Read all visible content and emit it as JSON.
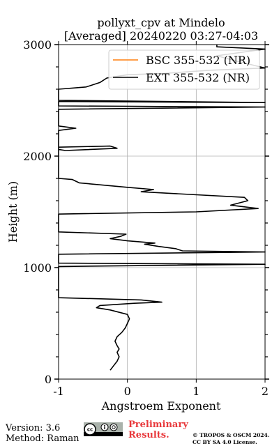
{
  "chart_data": {
    "type": "line",
    "title": [
      "pollyxt_cpv at Mindelo",
      "[Averaged] 20240220 03:27-04:03"
    ],
    "xlabel": "Angstroem Exponent",
    "ylabel": "Height (m)",
    "xlim": [
      -1,
      2
    ],
    "ylim": [
      0,
      3000
    ],
    "xticks": [
      "-1",
      "0",
      "1",
      "2"
    ],
    "yticks": [
      "0",
      "1000",
      "2000",
      "3000"
    ],
    "grid": true,
    "legend_position": "top-right",
    "series": [
      {
        "name": "BSC 355-532 (NR)",
        "color": "#ff7f0e",
        "points": []
      },
      {
        "name": "EXT 355-532 (NR)",
        "color": "#000000",
        "points": [
          [
            -0.25,
            80
          ],
          [
            -0.2,
            120
          ],
          [
            -0.15,
            160
          ],
          [
            -0.12,
            200
          ],
          [
            -0.15,
            240
          ],
          [
            -0.12,
            270
          ],
          [
            -0.15,
            300
          ],
          [
            -0.18,
            340
          ],
          [
            -0.15,
            380
          ],
          [
            -0.08,
            420
          ],
          [
            -0.03,
            460
          ],
          [
            0.0,
            500
          ],
          [
            0.03,
            540
          ],
          [
            0.0,
            580
          ],
          [
            -0.25,
            620
          ],
          [
            -0.45,
            640
          ],
          [
            -0.4,
            660
          ],
          [
            0.1,
            680
          ],
          [
            0.5,
            690
          ],
          [
            0.2,
            710
          ],
          [
            -1.0,
            730
          ],
          [
            -1.0,
            1010
          ],
          [
            2.0,
            1030
          ],
          [
            -1.0,
            1040
          ],
          [
            -1.0,
            1120
          ],
          [
            2.0,
            1140
          ],
          [
            0.8,
            1150
          ],
          [
            0.7,
            1170
          ],
          [
            0.45,
            1190
          ],
          [
            0.25,
            1210
          ],
          [
            0.4,
            1220
          ],
          [
            0.0,
            1240
          ],
          [
            -0.25,
            1260
          ],
          [
            -0.1,
            1280
          ],
          [
            -0.02,
            1300
          ],
          [
            -1.0,
            1320
          ],
          [
            -1.0,
            1480
          ],
          [
            1.0,
            1500
          ],
          [
            1.9,
            1530
          ],
          [
            1.5,
            1560
          ],
          [
            1.75,
            1600
          ],
          [
            1.7,
            1630
          ],
          [
            0.2,
            1680
          ],
          [
            0.38,
            1700
          ],
          [
            0.0,
            1720
          ],
          [
            -0.7,
            1760
          ],
          [
            -0.8,
            1790
          ],
          [
            -1.0,
            1800
          ],
          [
            -1.0,
            2080
          ],
          [
            -0.25,
            2090
          ],
          [
            -0.15,
            2070
          ],
          [
            -0.9,
            2050
          ],
          [
            -1.0,
            2060
          ],
          [
            -1.0,
            2230
          ],
          [
            -0.75,
            2250
          ],
          [
            -1.0,
            2270
          ],
          [
            -1.0,
            2420
          ],
          [
            2.0,
            2440
          ],
          [
            -1.0,
            2450
          ],
          [
            -1.0,
            2490
          ],
          [
            2.0,
            2480
          ],
          [
            -1.0,
            2500
          ],
          [
            -1.0,
            2600
          ],
          [
            -0.6,
            2620
          ],
          [
            -0.4,
            2660
          ],
          [
            -0.3,
            2700
          ],
          [
            0.0,
            2730
          ],
          [
            0.5,
            2740
          ],
          [
            1.2,
            2770
          ],
          [
            2.0,
            2790
          ],
          [
            1.6,
            2850
          ],
          [
            1.3,
            2900
          ],
          [
            2.0,
            2960
          ],
          [
            1.3,
            2980
          ],
          [
            1.3,
            3000
          ]
        ]
      }
    ]
  },
  "footer": {
    "version": "Version: 3.6",
    "method": "Method: Raman",
    "license_badge": "cc-by-sa-icon",
    "preliminary": [
      "Preliminary",
      "Results."
    ],
    "copyright": [
      "© TROPOS & OSCM 2024.",
      "CC BY SA 4.0 License."
    ]
  }
}
